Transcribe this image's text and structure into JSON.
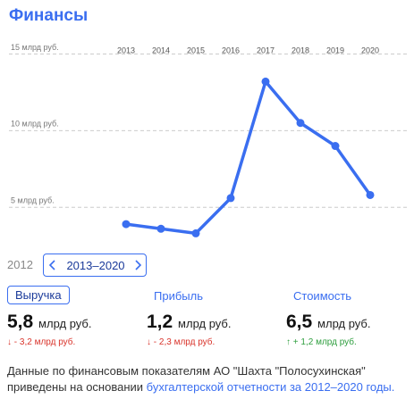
{
  "header": {
    "title": "Финансы"
  },
  "chart_data": {
    "type": "line",
    "categories": [
      "2013",
      "2014",
      "2015",
      "2016",
      "2017",
      "2018",
      "2019",
      "2020"
    ],
    "series": [
      {
        "name": "Выручка",
        "color": "#3a6ef0",
        "values": [
          3.9,
          3.6,
          3.3,
          5.6,
          13.2,
          10.5,
          9.0,
          5.8
        ]
      }
    ],
    "ylim": [
      2.8,
      15.9
    ],
    "yticks": [
      {
        "value": 5,
        "label": "5 млрд руб."
      },
      {
        "value": 10,
        "label": "10 млрд руб."
      },
      {
        "value": 15,
        "label": "15 млрд руб."
      }
    ],
    "grid": true
  },
  "period": {
    "previous": "2012",
    "current": "2013–2020"
  },
  "metrics": [
    {
      "name": "Выручка",
      "value": "5,8",
      "unit": "млрд руб.",
      "change": "↓ - 3,2 млрд руб.",
      "trend": "down"
    },
    {
      "name": "Прибыль",
      "value": "1,2",
      "unit": "млрд руб.",
      "change": "↓ - 2,3 млрд руб.",
      "trend": "down"
    },
    {
      "name": "Стоимость",
      "value": "6,5",
      "unit": "млрд руб.",
      "change": "↑ + 1,2 млрд руб.",
      "trend": "up"
    }
  ],
  "footer": {
    "text": "Данные по финансовым показателям АО \"Шахта \"Полосухинская\" приведены на основании ",
    "link": "бухгалтерской отчетности за 2012–2020 годы."
  }
}
